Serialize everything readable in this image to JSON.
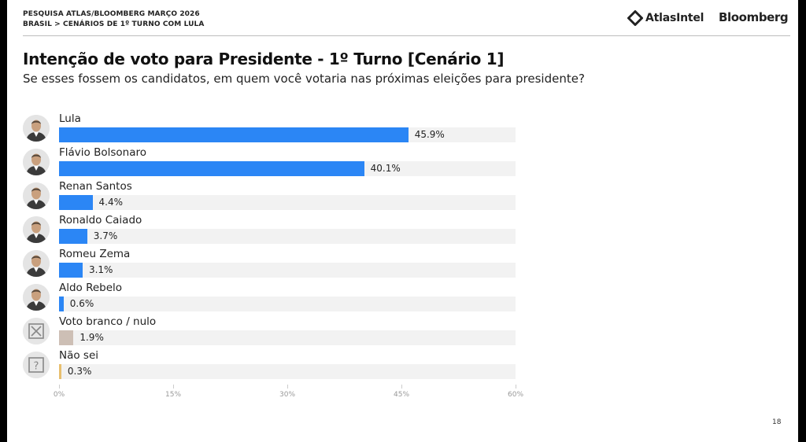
{
  "header": {
    "line1": "PESQUISA ATLAS/BLOOMBERG MARÇO 2026",
    "line2": "BRASIL > CENÁRIOS DE 1º TURNO COM LULA",
    "logo_atlas": "AtlasIntel",
    "logo_bloomberg": "Bloomberg"
  },
  "page_number": "18",
  "colors": {
    "candidate_bar": "#2b86f5",
    "blank_bar": "#cdbfb5",
    "unsure_bar": "#e8bf6e",
    "track": "#f2f2f2"
  },
  "chart_data": {
    "type": "bar",
    "orientation": "horizontal",
    "title": "Intenção de voto para Presidente - 1º Turno [Cenário 1]",
    "subtitle": "Se esses fossem os candidatos, em quem você votaria nas próximas eleições para presidente?",
    "xlim": [
      0,
      60
    ],
    "xticks": [
      "0%",
      "15%",
      "30%",
      "45%",
      "60%"
    ],
    "xtick_values": [
      0,
      15,
      30,
      45,
      60
    ],
    "categories": [
      "Lula",
      "Flávio Bolsonaro",
      "Renan Santos",
      "Ronaldo Caiado",
      "Romeu Zema",
      "Aldo Rebelo",
      "Voto branco / nulo",
      "Não sei"
    ],
    "values": [
      45.9,
      40.1,
      4.4,
      3.7,
      3.1,
      0.6,
      1.9,
      0.3
    ],
    "labels": [
      "45.9%",
      "40.1%",
      "4.4%",
      "3.7%",
      "3.1%",
      "0.6%",
      "1.9%",
      "0.3%"
    ],
    "kinds": [
      "person",
      "person",
      "person",
      "person",
      "person",
      "person",
      "blank",
      "unsure"
    ]
  }
}
